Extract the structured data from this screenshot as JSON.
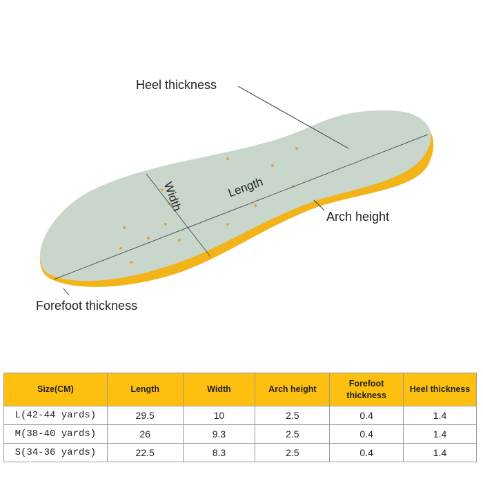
{
  "labels": {
    "heel": "Heel thickness",
    "arch": "Arch height",
    "forefoot": "Forefoot thickness",
    "width": "Width",
    "length": "Length"
  },
  "colors": {
    "insole_top": "#c9d6cc",
    "insole_edge": "#f2b418",
    "header": "#fdc010"
  },
  "table": {
    "headers": [
      "Size(CM)",
      "Length",
      "Width",
      "Arch height",
      "Forefoot thickness",
      "Heel thickness"
    ],
    "rows": [
      [
        "L(42-44 yards)",
        "29.5",
        "10",
        "2.5",
        "0.4",
        "1.4"
      ],
      [
        "M(38-40 yards)",
        "26",
        "9.3",
        "2.5",
        "0.4",
        "1.4"
      ],
      [
        "S(34-36 yards)",
        "22.5",
        "8.3",
        "2.5",
        "0.4",
        "1.4"
      ]
    ]
  }
}
